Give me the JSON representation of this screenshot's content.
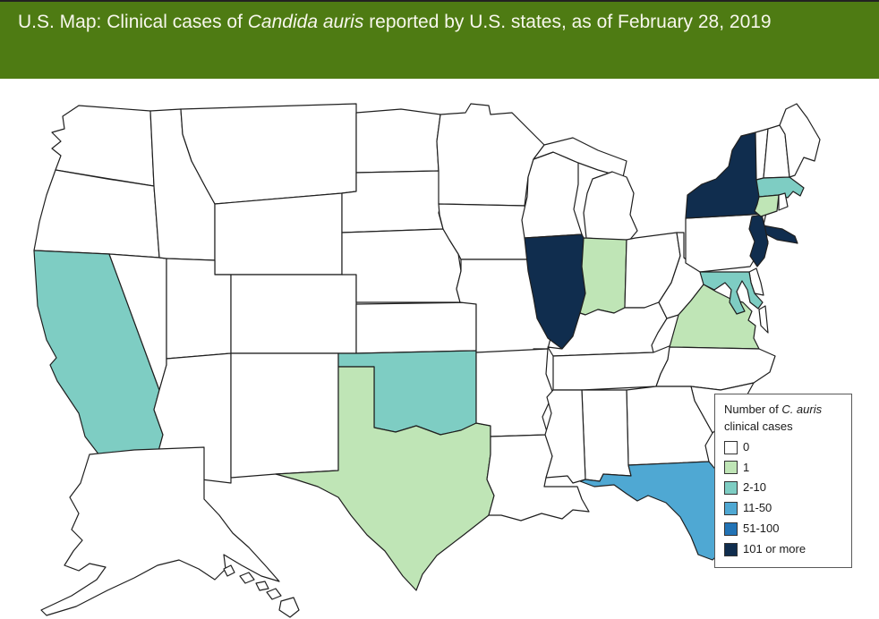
{
  "header": {
    "title_prefix": "U.S. Map: Clinical cases of ",
    "title_italic": "Candida auris",
    "title_suffix": " reported by U.S. states, as of February 28, 2019",
    "background_color": "#4e7b13",
    "text_color": "#f7f7ec"
  },
  "legend": {
    "title_prefix": "Number of ",
    "title_italic": "C. auris",
    "title_line2": "clinical cases",
    "items": [
      {
        "label": "0",
        "color": "#ffffff"
      },
      {
        "label": "1",
        "color": "#bfe5b6"
      },
      {
        "label": "2-10",
        "color": "#7ecdc3"
      },
      {
        "label": "11-50",
        "color": "#4fa8d3"
      },
      {
        "label": "51-100",
        "color": "#2273b5"
      },
      {
        "label": "101 or more",
        "color": "#102d4e"
      }
    ]
  },
  "map": {
    "border_color": "#1f1f1f",
    "background_color": "#ffffff",
    "states": [
      {
        "id": "WA",
        "name": "Washington",
        "category": "0"
      },
      {
        "id": "OR",
        "name": "Oregon",
        "category": "0"
      },
      {
        "id": "CA",
        "name": "California",
        "category": "2-10"
      },
      {
        "id": "NV",
        "name": "Nevada",
        "category": "0"
      },
      {
        "id": "ID",
        "name": "Idaho",
        "category": "0"
      },
      {
        "id": "MT",
        "name": "Montana",
        "category": "0"
      },
      {
        "id": "WY",
        "name": "Wyoming",
        "category": "0"
      },
      {
        "id": "UT",
        "name": "Utah",
        "category": "0"
      },
      {
        "id": "CO",
        "name": "Colorado",
        "category": "0"
      },
      {
        "id": "AZ",
        "name": "Arizona",
        "category": "0"
      },
      {
        "id": "NM",
        "name": "New Mexico",
        "category": "0"
      },
      {
        "id": "ND",
        "name": "North Dakota",
        "category": "0"
      },
      {
        "id": "SD",
        "name": "South Dakota",
        "category": "0"
      },
      {
        "id": "NE",
        "name": "Nebraska",
        "category": "0"
      },
      {
        "id": "KS",
        "name": "Kansas",
        "category": "0"
      },
      {
        "id": "OK",
        "name": "Oklahoma",
        "category": "2-10"
      },
      {
        "id": "TX",
        "name": "Texas",
        "category": "1"
      },
      {
        "id": "MN",
        "name": "Minnesota",
        "category": "0"
      },
      {
        "id": "IA",
        "name": "Iowa",
        "category": "0"
      },
      {
        "id": "MO",
        "name": "Missouri",
        "category": "0"
      },
      {
        "id": "AR",
        "name": "Arkansas",
        "category": "0"
      },
      {
        "id": "LA",
        "name": "Louisiana",
        "category": "0"
      },
      {
        "id": "WI",
        "name": "Wisconsin",
        "category": "0"
      },
      {
        "id": "IL",
        "name": "Illinois",
        "category": "101 or more"
      },
      {
        "id": "MI",
        "name": "Michigan",
        "category": "0"
      },
      {
        "id": "IN",
        "name": "Indiana",
        "category": "1"
      },
      {
        "id": "OH",
        "name": "Ohio",
        "category": "0"
      },
      {
        "id": "KY",
        "name": "Kentucky",
        "category": "0"
      },
      {
        "id": "TN",
        "name": "Tennessee",
        "category": "0"
      },
      {
        "id": "WV",
        "name": "West Virginia",
        "category": "0"
      },
      {
        "id": "VA",
        "name": "Virginia",
        "category": "1"
      },
      {
        "id": "ES",
        "name": "Virginia Eastern Shore",
        "category": "0"
      },
      {
        "id": "NC",
        "name": "North Carolina",
        "category": "0"
      },
      {
        "id": "SC",
        "name": "South Carolina",
        "category": "0"
      },
      {
        "id": "GA",
        "name": "Georgia",
        "category": "0"
      },
      {
        "id": "AL",
        "name": "Alabama",
        "category": "0"
      },
      {
        "id": "MS",
        "name": "Mississippi",
        "category": "0"
      },
      {
        "id": "FL",
        "name": "Florida",
        "category": "11-50"
      },
      {
        "id": "PA",
        "name": "Pennsylvania",
        "category": "0"
      },
      {
        "id": "NY",
        "name": "New York",
        "category": "101 or more"
      },
      {
        "id": "NJ",
        "name": "New Jersey",
        "category": "101 or more"
      },
      {
        "id": "DE",
        "name": "Delaware",
        "category": "0"
      },
      {
        "id": "MD",
        "name": "Maryland",
        "category": "2-10"
      },
      {
        "id": "VT",
        "name": "Vermont",
        "category": "0"
      },
      {
        "id": "NH",
        "name": "New Hampshire",
        "category": "0"
      },
      {
        "id": "ME",
        "name": "Maine",
        "category": "0"
      },
      {
        "id": "MA",
        "name": "Massachusetts",
        "category": "2-10"
      },
      {
        "id": "CT",
        "name": "Connecticut",
        "category": "1"
      },
      {
        "id": "RI",
        "name": "Rhode Island",
        "category": "0"
      },
      {
        "id": "AK",
        "name": "Alaska",
        "category": "0"
      },
      {
        "id": "HI",
        "name": "Hawaii",
        "category": "0"
      }
    ]
  }
}
